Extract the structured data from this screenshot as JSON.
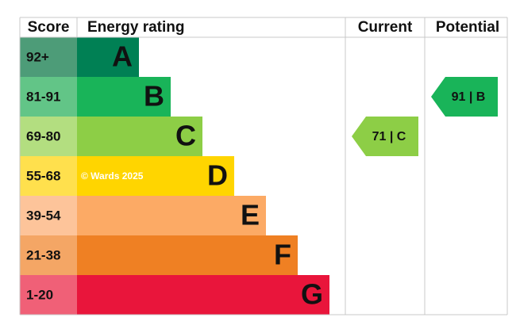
{
  "header": {
    "score": "Score",
    "energy_rating": "Energy rating",
    "current": "Current",
    "potential": "Potential"
  },
  "bands": [
    {
      "score": "92+",
      "letter": "A",
      "color": "#008054",
      "score_color": "#4d9c78"
    },
    {
      "score": "81-91",
      "letter": "B",
      "color": "#19b459",
      "score_color": "#62c587"
    },
    {
      "score": "69-80",
      "letter": "C",
      "color": "#8dce46",
      "score_color": "#b3de80"
    },
    {
      "score": "55-68",
      "letter": "D",
      "color": "#ffd500",
      "score_color": "#ffe04d"
    },
    {
      "score": "39-54",
      "letter": "E",
      "color": "#fcaa65",
      "score_color": "#fdc49a"
    },
    {
      "score": "21-38",
      "letter": "F",
      "color": "#ef8023",
      "score_color": "#f4a665"
    },
    {
      "score": "1-20",
      "letter": "G",
      "color": "#e9153b",
      "score_color": "#f06077"
    }
  ],
  "watermark": "© Wards 2025",
  "current": {
    "label": "71 | C",
    "letter": "C"
  },
  "potential": {
    "label": "91 | B",
    "letter": "B"
  }
}
